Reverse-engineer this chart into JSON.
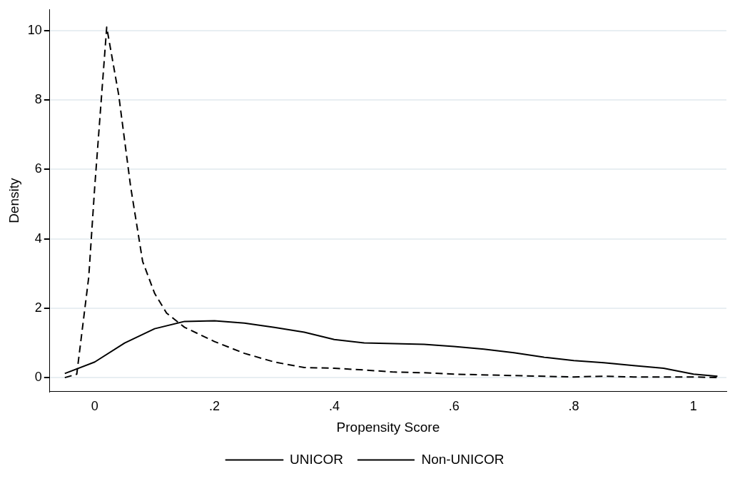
{
  "chart_data": {
    "type": "line",
    "xlabel": "Propensity Score",
    "ylabel": "Density",
    "xlim": [
      -0.075,
      1.055
    ],
    "xticks": [
      0,
      {
        "value": 0.2,
        "label": ".2"
      },
      {
        "value": 0.4,
        "label": ".4"
      },
      {
        "value": 0.6,
        "label": ".6"
      },
      {
        "value": 0.8,
        "label": ".8"
      },
      1
    ],
    "ylim": [
      -0.4,
      10.6
    ],
    "yticks": [
      0,
      2,
      4,
      6,
      8,
      10
    ],
    "grid": "y",
    "legend": "bottom",
    "marker": "none",
    "series": [
      {
        "name": "UNICOR",
        "color": "#000000",
        "line_style": "solid",
        "x": [
          -0.05,
          0,
          0.05,
          0.1,
          0.15,
          0.2,
          0.25,
          0.3,
          0.35,
          0.4,
          0.45,
          0.5,
          0.55,
          0.6,
          0.65,
          0.7,
          0.75,
          0.8,
          0.85,
          0.9,
          0.95,
          1.0,
          1.04
        ],
        "values": [
          0.12,
          0.45,
          1.0,
          1.41,
          1.62,
          1.64,
          1.57,
          1.45,
          1.31,
          1.1,
          1.0,
          0.98,
          0.96,
          0.9,
          0.82,
          0.72,
          0.59,
          0.49,
          0.43,
          0.35,
          0.27,
          0.1,
          0.04
        ]
      },
      {
        "name": "Non-UNICOR",
        "color": "#000000",
        "line_style": "dashed",
        "x": [
          -0.05,
          -0.03,
          -0.01,
          0,
          0.02,
          0.04,
          0.06,
          0.08,
          0.1,
          0.12,
          0.15,
          0.2,
          0.25,
          0.3,
          0.35,
          0.4,
          0.45,
          0.5,
          0.55,
          0.6,
          0.7,
          0.8,
          0.85,
          0.9,
          1.0,
          1.04
        ],
        "values": [
          0,
          0.1,
          2.9,
          5.5,
          10.1,
          8.15,
          5.5,
          3.35,
          2.43,
          1.86,
          1.45,
          1.04,
          0.7,
          0.45,
          0.29,
          0.27,
          0.22,
          0.16,
          0.14,
          0.1,
          0.06,
          0.02,
          0.04,
          0.02,
          0.02,
          0
        ]
      }
    ]
  }
}
